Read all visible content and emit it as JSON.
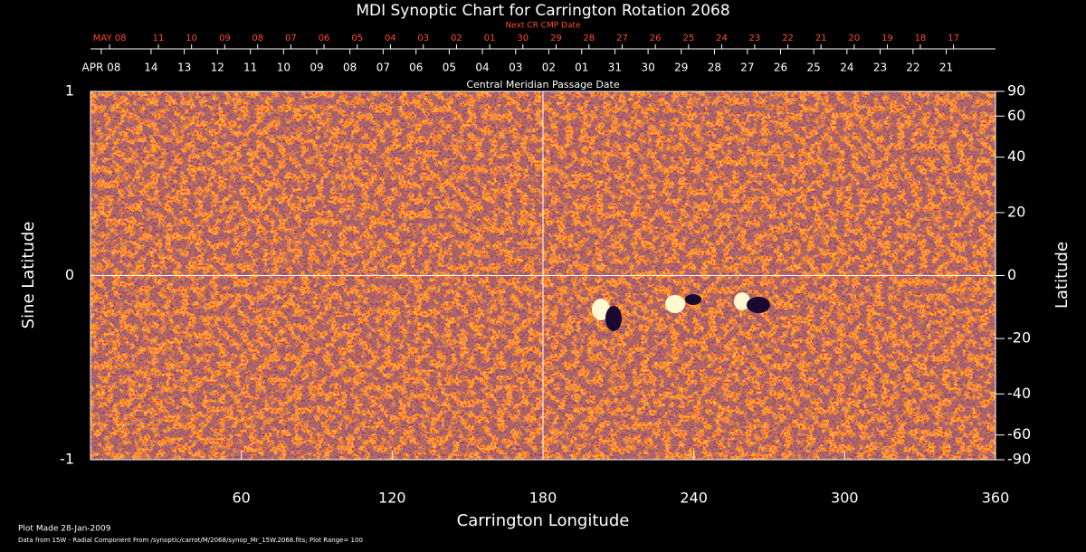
{
  "chart_data": {
    "type": "synoptic-map",
    "title": "MDI Synoptic Chart for Carrington Rotation 2068",
    "next_cmp_label": "Next CR CMP Date",
    "cmp_label": "Central Meridian Passage Date",
    "xlabel": "Carrington Longitude",
    "ylabel": "Sine Latitude",
    "y2label": "Latitude",
    "xlim": [
      0,
      360
    ],
    "ylim": [
      -1,
      1
    ],
    "y2lim": [
      -90,
      90
    ],
    "y2scale": "sine",
    "xticks": [
      60,
      120,
      180,
      240,
      300,
      360
    ],
    "yticks": [
      -1,
      0,
      1
    ],
    "y2ticks": [
      90,
      60,
      40,
      20,
      0,
      -20,
      -40,
      -60,
      -90
    ],
    "center_lines": true,
    "next_cmp_ticks": [
      {
        "value": 7.6,
        "label": "MAY 08"
      },
      {
        "value": 27.0,
        "label": "11"
      },
      {
        "value": 40.2,
        "label": "10"
      },
      {
        "value": 53.4,
        "label": "09"
      },
      {
        "value": 66.5,
        "label": "08"
      },
      {
        "value": 79.7,
        "label": "07"
      },
      {
        "value": 92.9,
        "label": "06"
      },
      {
        "value": 106.1,
        "label": "05"
      },
      {
        "value": 119.3,
        "label": "04"
      },
      {
        "value": 132.4,
        "label": "03"
      },
      {
        "value": 145.6,
        "label": "02"
      },
      {
        "value": 158.8,
        "label": "01"
      },
      {
        "value": 172.0,
        "label": "30"
      },
      {
        "value": 185.2,
        "label": "29"
      },
      {
        "value": 198.3,
        "label": "28"
      },
      {
        "value": 211.5,
        "label": "27"
      },
      {
        "value": 224.7,
        "label": "26"
      },
      {
        "value": 237.9,
        "label": "25"
      },
      {
        "value": 251.1,
        "label": "24"
      },
      {
        "value": 264.2,
        "label": "23"
      },
      {
        "value": 277.4,
        "label": "22"
      },
      {
        "value": 290.6,
        "label": "21"
      },
      {
        "value": 303.8,
        "label": "20"
      },
      {
        "value": 317.0,
        "label": "19"
      },
      {
        "value": 330.1,
        "label": "18"
      },
      {
        "value": 343.3,
        "label": "17"
      }
    ],
    "cmp_ticks": [
      {
        "value": 4.3,
        "label": "APR 08"
      },
      {
        "value": 24.1,
        "label": "14"
      },
      {
        "value": 37.3,
        "label": "13"
      },
      {
        "value": 50.5,
        "label": "12"
      },
      {
        "value": 63.6,
        "label": "11"
      },
      {
        "value": 76.8,
        "label": "10"
      },
      {
        "value": 90.0,
        "label": "09"
      },
      {
        "value": 103.2,
        "label": "08"
      },
      {
        "value": 116.4,
        "label": "07"
      },
      {
        "value": 129.5,
        "label": "06"
      },
      {
        "value": 142.7,
        "label": "05"
      },
      {
        "value": 155.9,
        "label": "04"
      },
      {
        "value": 169.1,
        "label": "03"
      },
      {
        "value": 182.3,
        "label": "02"
      },
      {
        "value": 195.4,
        "label": "01"
      },
      {
        "value": 208.6,
        "label": "31"
      },
      {
        "value": 221.8,
        "label": "30"
      },
      {
        "value": 235.0,
        "label": "29"
      },
      {
        "value": 248.2,
        "label": "28"
      },
      {
        "value": 261.3,
        "label": "27"
      },
      {
        "value": 274.5,
        "label": "26"
      },
      {
        "value": 287.7,
        "label": "25"
      },
      {
        "value": 300.9,
        "label": "24"
      },
      {
        "value": 314.1,
        "label": "23"
      },
      {
        "value": 327.2,
        "label": "22"
      },
      {
        "value": 340.4,
        "label": "21"
      }
    ],
    "footer": [
      "Plot Made 28-Jan-2009",
      "Data from 15W - Radial Component From /synoptic/carrot/M/2068/synop_Mr_15W.2068.fits; Plot Range=  100"
    ]
  }
}
